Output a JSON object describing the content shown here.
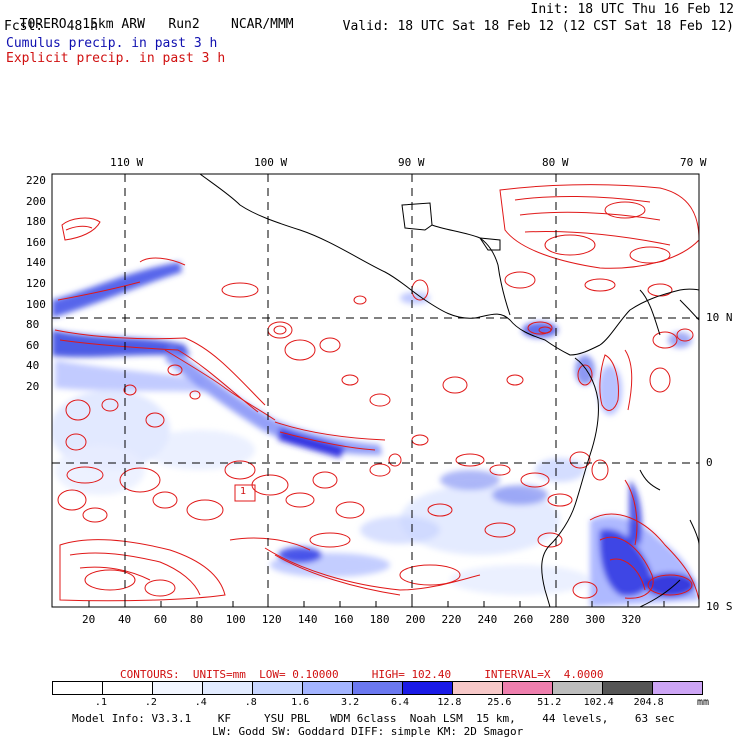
{
  "header": {
    "model": "TORERO",
    "resolution": "15km ARW",
    "run": "Run2",
    "center": "NCAR/MMM",
    "init": "Init: 18 UTC Thu 16 Feb 12",
    "fcst_label": "Fcst:",
    "fcst_value": "48 h",
    "valid": "Valid: 18 UTC Sat 18 Feb 12 (12 CST Sat 18 Feb 12)"
  },
  "legend_titles": {
    "cumulus": "Cumulus precip. in past 3 h",
    "explicit": "Explicit precip. in past 3 h"
  },
  "map": {
    "lon_labels": [
      "110 W",
      "100 W",
      "90 W",
      "80 W",
      "70 W"
    ],
    "lat_labels": [
      "10 N",
      "0",
      "10 S"
    ],
    "y_ticks": [
      "220",
      "200",
      "180",
      "160",
      "140",
      "120",
      "100",
      "80",
      "60",
      "40",
      "20"
    ],
    "x_ticks": [
      "20",
      "40",
      "60",
      "80",
      "100",
      "120",
      "140",
      "160",
      "180",
      "200",
      "220",
      "240",
      "260",
      "280",
      "300",
      "320"
    ],
    "marker_label": "1"
  },
  "contours": {
    "label": "CONTOURS:",
    "units": "UNITS=mm",
    "low": "LOW= 0.10000",
    "high": "HIGH= 102.40",
    "interval": "INTERVAL=X  4.0000"
  },
  "colorbar": {
    "labels": [
      ".1",
      ".2",
      ".4",
      ".8",
      "1.6",
      "3.2",
      "6.4",
      "12.8",
      "25.6",
      "51.2",
      "102.4",
      "204.8"
    ],
    "unit": "mm",
    "colors": [
      "#ffffff",
      "#ffffff",
      "#f2f6ff",
      "#e2ebff",
      "#c8d6ff",
      "#a3b4ff",
      "#6b78f0",
      "#1a1ae6",
      "#f7c8c8",
      "#ef7fae",
      "#bdbdbd",
      "#555555",
      "#cda5f5"
    ]
  },
  "footer": {
    "line1": "Model Info: V3.3.1    KF     YSU PBL   WDM 6class  Noah LSM  15 km,    44 levels,    63 sec",
    "line2": "LW: Godd SW: Goddard DIFF: simple KM: 2D Smagor"
  }
}
